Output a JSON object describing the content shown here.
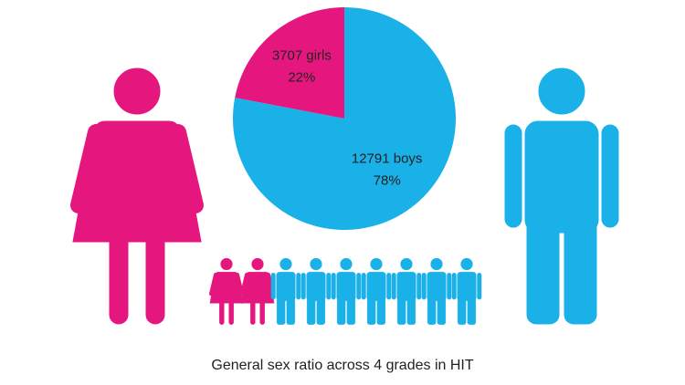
{
  "chart_data": {
    "type": "pie",
    "title": "General sex ratio across 4 grades in HIT",
    "labels": [
      "3707 girls",
      "12791 boys"
    ],
    "values": [
      22,
      78
    ],
    "value_labels": [
      "22%",
      "78%"
    ],
    "colors": [
      "#e5177f",
      "#1ab0e8"
    ]
  }
}
